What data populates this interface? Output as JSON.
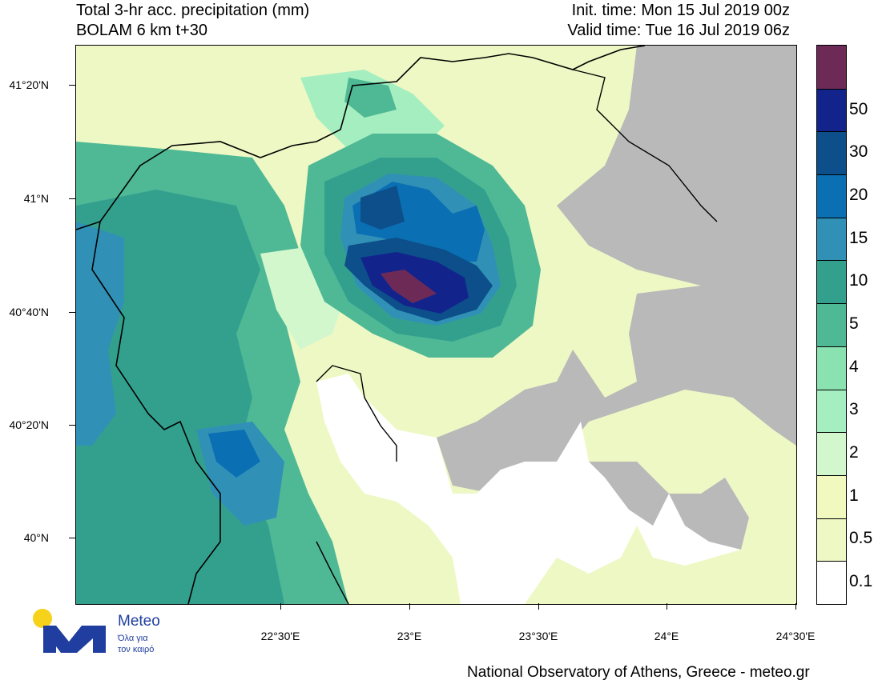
{
  "header": {
    "title_line1": "Total 3-hr acc. precipitation (mm)",
    "title_line2": "BOLAM 6 km t+30",
    "init_time": "Init. time: Mon 15 Jul 2019 00z",
    "valid_time": "Valid time: Tue 16 Jul 2019 06z"
  },
  "axes": {
    "lat_labels": [
      "41°20'N",
      "41°N",
      "40°40'N",
      "40°20'N",
      "40°N"
    ],
    "lon_labels": [
      "22°30'E",
      "23°E",
      "23°30'E",
      "24°E",
      "24°30'E"
    ]
  },
  "colorbar": {
    "levels": [
      "0.1",
      "0.5",
      "1",
      "2",
      "3",
      "4",
      "5",
      "10",
      "15",
      "20",
      "30",
      "50"
    ],
    "colors": [
      "#ffffff",
      "#eef8c4",
      "#f1f9bf",
      "#d3f7cd",
      "#a5eec0",
      "#8ae2b0",
      "#4fb996",
      "#33a08e",
      "#3190b6",
      "#0a6fb3",
      "#0c4f8a",
      "#12248c",
      "#6e2a56"
    ]
  },
  "map_colors": {
    "land_nodata": "#b9b9b9",
    "sea": "#ffffff",
    "border": "#000000"
  },
  "footer": {
    "credit": "National Observatory of Athens, Greece - meteo.gr"
  },
  "logo": {
    "name": "Meteo",
    "tagline1": "Όλα για",
    "tagline2": "τον καιρό"
  }
}
